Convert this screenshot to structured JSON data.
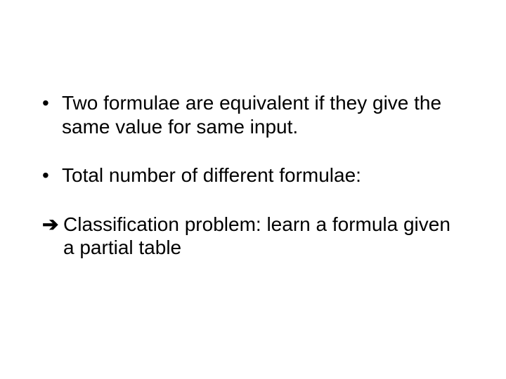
{
  "slide": {
    "background_color": "#ffffff",
    "text_color": "#000000",
    "font_family": "Arial",
    "font_size_pt": 28,
    "bullets": [
      {
        "marker": "•",
        "text": "Two formulae are equivalent if they give the same value for same input."
      },
      {
        "marker": "•",
        "text": "Total number of different formulae:"
      }
    ],
    "arrow": {
      "marker": "➔",
      "text": "Classification problem: learn a formula given a partial table"
    }
  }
}
